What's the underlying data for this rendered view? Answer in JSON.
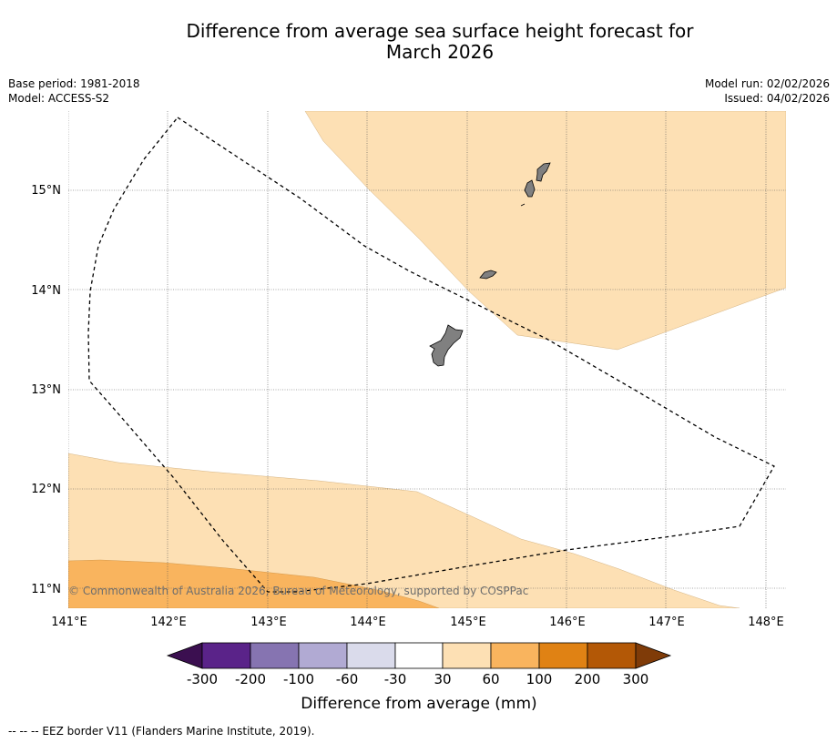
{
  "title_line1": "Difference from average sea surface height forecast for",
  "title_line2": "March 2026",
  "base_period": "Base period: 1981-2018",
  "model": "Model: ACCESS-S2",
  "model_run": "Model run: 02/02/2026",
  "issued": "Issued: 04/02/2026",
  "lon_labels": [
    "141°E",
    "142°E",
    "143°E",
    "144°E",
    "145°E",
    "146°E",
    "147°E",
    "148°E"
  ],
  "lat_labels": [
    "15°N",
    "14°N",
    "13°N",
    "12°N",
    "11°N"
  ],
  "copyright": "© Commonwealth of Australia 2026, Bureau of Meteorology, supported by COSPPac",
  "colorbar": {
    "ticks": [
      "-300",
      "-200",
      "-100",
      "-60",
      "-30",
      "30",
      "60",
      "100",
      "200",
      "300"
    ],
    "colors": [
      "#3b0f50",
      "#5a2389",
      "#8674b1",
      "#b1aad3",
      "#dadbeb",
      "#ffffff",
      "#fde0b4",
      "#f9b45e",
      "#e08214",
      "#b35806",
      "#7f3b08"
    ],
    "label": "Difference from average (mm)"
  },
  "footnote": "--  --  -- EEZ border V11 (Flanders Marine Institute, 2019)."
}
